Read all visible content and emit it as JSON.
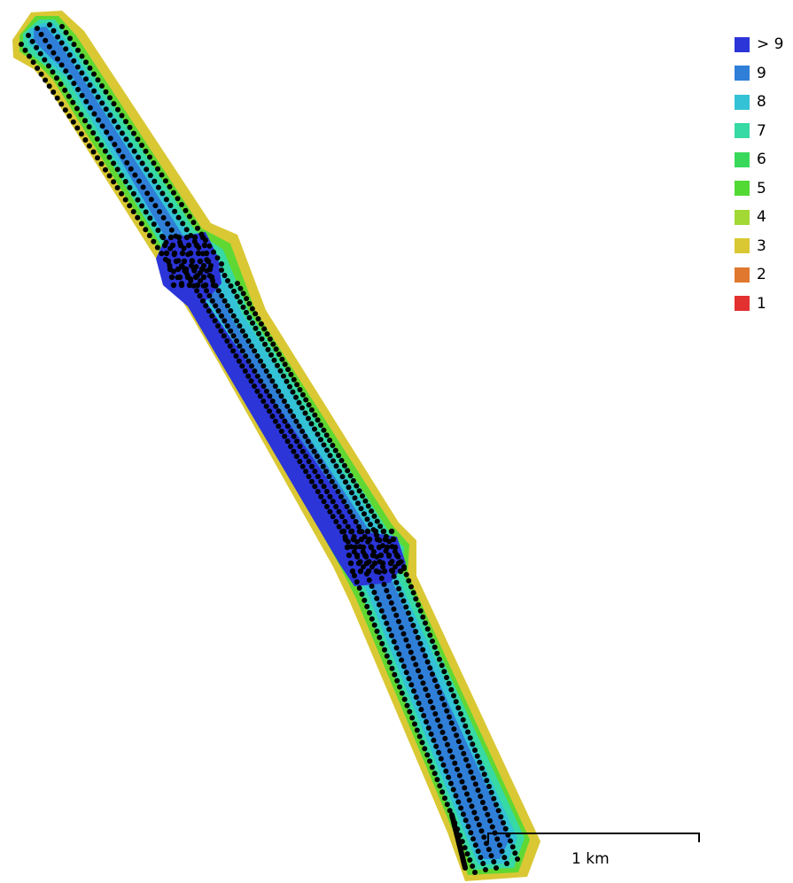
{
  "legend": {
    "items": [
      {
        "label": "> 9",
        "color": "#2b35d8"
      },
      {
        "label": "9",
        "color": "#2f7fd8"
      },
      {
        "label": "8",
        "color": "#33c2d6"
      },
      {
        "label": "7",
        "color": "#37d9a4"
      },
      {
        "label": "6",
        "color": "#38d95a"
      },
      {
        "label": "5",
        "color": "#52d933"
      },
      {
        "label": "4",
        "color": "#a3d934"
      },
      {
        "label": "3",
        "color": "#d9c834"
      },
      {
        "label": "2",
        "color": "#e0782f"
      },
      {
        "label": "1",
        "color": "#e33030"
      }
    ]
  },
  "scalebar": {
    "label": "1 km"
  },
  "map": {
    "layer": "image-overlap-coverage",
    "markers": "camera-locations",
    "marker_color": "#000000"
  }
}
